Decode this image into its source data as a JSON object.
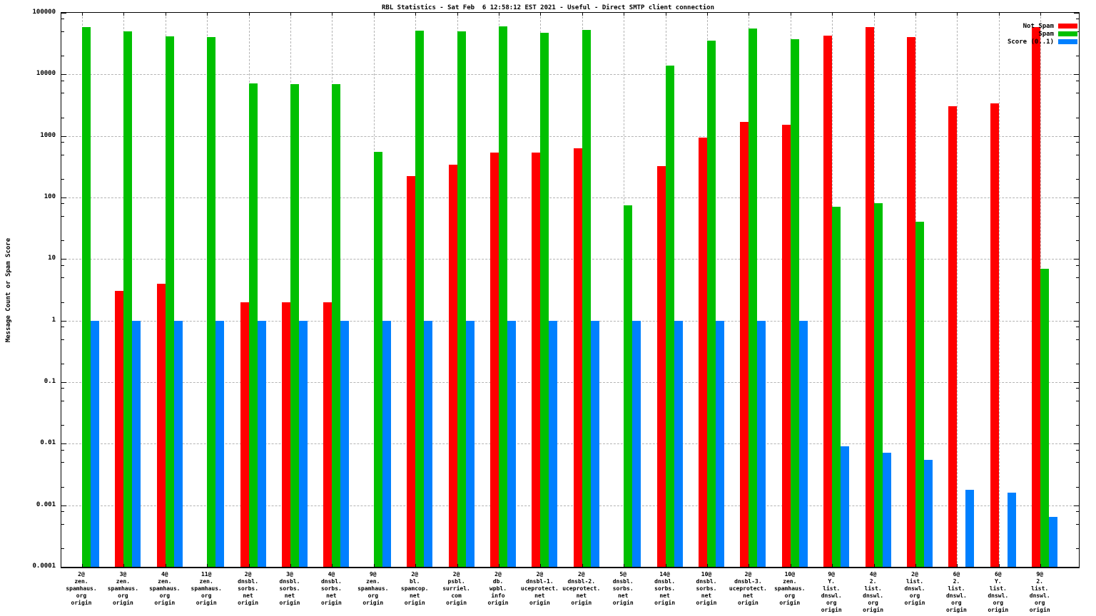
{
  "title": "RBL Statistics - Sat Feb  6 12:58:12 EST 2021 - Useful - Direct SMTP client connection",
  "y_axis_label": "Message Count or Spam Score",
  "colors": {
    "not_spam": "#ff0000",
    "spam": "#00c000",
    "score": "#0080ff",
    "grid": "#b4b4b4",
    "axis": "#000000",
    "background": "#ffffff"
  },
  "chart_data": {
    "type": "bar",
    "scale": "log",
    "title": "RBL Statistics - Sat Feb  6 12:58:12 EST 2021 - Useful - Direct SMTP client connection",
    "ylabel": "Message Count or Spam Score",
    "xlabel": "",
    "ylim": [
      0.0001,
      100000
    ],
    "grid": true,
    "legend_position": "top-right",
    "y_ticks": [
      "100000",
      "10000",
      "1000",
      "100",
      "10",
      "1",
      "0.1",
      "0.01",
      "0.001",
      "0.0001"
    ],
    "minor_tick_multipliers": [
      2,
      5,
      8
    ],
    "categories": [
      [
        "2@",
        "zen.",
        "spamhaus.",
        "org",
        "origin"
      ],
      [
        "3@",
        "zen.",
        "spamhaus.",
        "org",
        "origin"
      ],
      [
        "4@",
        "zen.",
        "spamhaus.",
        "org",
        "origin"
      ],
      [
        "11@",
        "zen.",
        "spamhaus.",
        "org",
        "origin"
      ],
      [
        "2@",
        "dnsbl.",
        "sorbs.",
        "net",
        "origin"
      ],
      [
        "3@",
        "dnsbl.",
        "sorbs.",
        "net",
        "origin"
      ],
      [
        "4@",
        "dnsbl.",
        "sorbs.",
        "net",
        "origin"
      ],
      [
        "9@",
        "zen.",
        "spamhaus.",
        "org",
        "origin"
      ],
      [
        "2@",
        "bl.",
        "spamcop.",
        "net",
        "origin"
      ],
      [
        "2@",
        "psbl.",
        "surriel.",
        "com",
        "origin"
      ],
      [
        "2@",
        "db.",
        "wpbl.",
        "info",
        "origin"
      ],
      [
        "2@",
        "dnsbl-1.",
        "uceprotect.",
        "net",
        "origin"
      ],
      [
        "2@",
        "dnsbl-2.",
        "uceprotect.",
        "net",
        "origin"
      ],
      [
        "5@",
        "dnsbl.",
        "sorbs.",
        "net",
        "origin"
      ],
      [
        "14@",
        "dnsbl.",
        "sorbs.",
        "net",
        "origin"
      ],
      [
        "10@",
        "dnsbl.",
        "sorbs.",
        "net",
        "origin"
      ],
      [
        "2@",
        "dnsbl-3.",
        "uceprotect.",
        "net",
        "origin"
      ],
      [
        "10@",
        "zen.",
        "spamhaus.",
        "org",
        "origin"
      ],
      [
        "9@",
        "Y.",
        "list.",
        "dnswl.",
        "org",
        "origin"
      ],
      [
        "4@",
        "2.",
        "list.",
        "dnswl.",
        "org",
        "origin"
      ],
      [
        "2@",
        "list.",
        "dnswl.",
        "org",
        "origin"
      ],
      [
        "6@",
        "2.",
        "list.",
        "dnswl.",
        "org",
        "origin"
      ],
      [
        "6@",
        "Y.",
        "list.",
        "dnswl.",
        "org",
        "origin"
      ],
      [
        "9@",
        "2.",
        "list.",
        "dnswl.",
        "org",
        "origin"
      ]
    ],
    "series": [
      {
        "name": "Not Spam",
        "color": "#ff0000",
        "values": [
          null,
          3,
          4,
          null,
          2,
          2,
          2,
          null,
          220,
          340,
          540,
          540,
          630,
          null,
          320,
          950,
          1700,
          1500,
          43000,
          58000,
          40000,
          3000,
          3400,
          58000
        ]
      },
      {
        "name": "Spam",
        "color": "#00c000",
        "values": [
          58000,
          50000,
          41000,
          40000,
          7200,
          7000,
          7000,
          550,
          52000,
          50000,
          60000,
          48000,
          53000,
          75,
          14000,
          35000,
          55000,
          37000,
          70,
          80,
          40,
          null,
          null,
          7
        ]
      },
      {
        "name": "Score (0..1)",
        "color": "#0080ff",
        "values": [
          1,
          1,
          1,
          1,
          1,
          1,
          1,
          1,
          1,
          1,
          1,
          1,
          1,
          1,
          1,
          1,
          1,
          1,
          0.009,
          0.0072,
          0.0054,
          0.0018,
          0.0016,
          0.00065
        ]
      }
    ]
  }
}
